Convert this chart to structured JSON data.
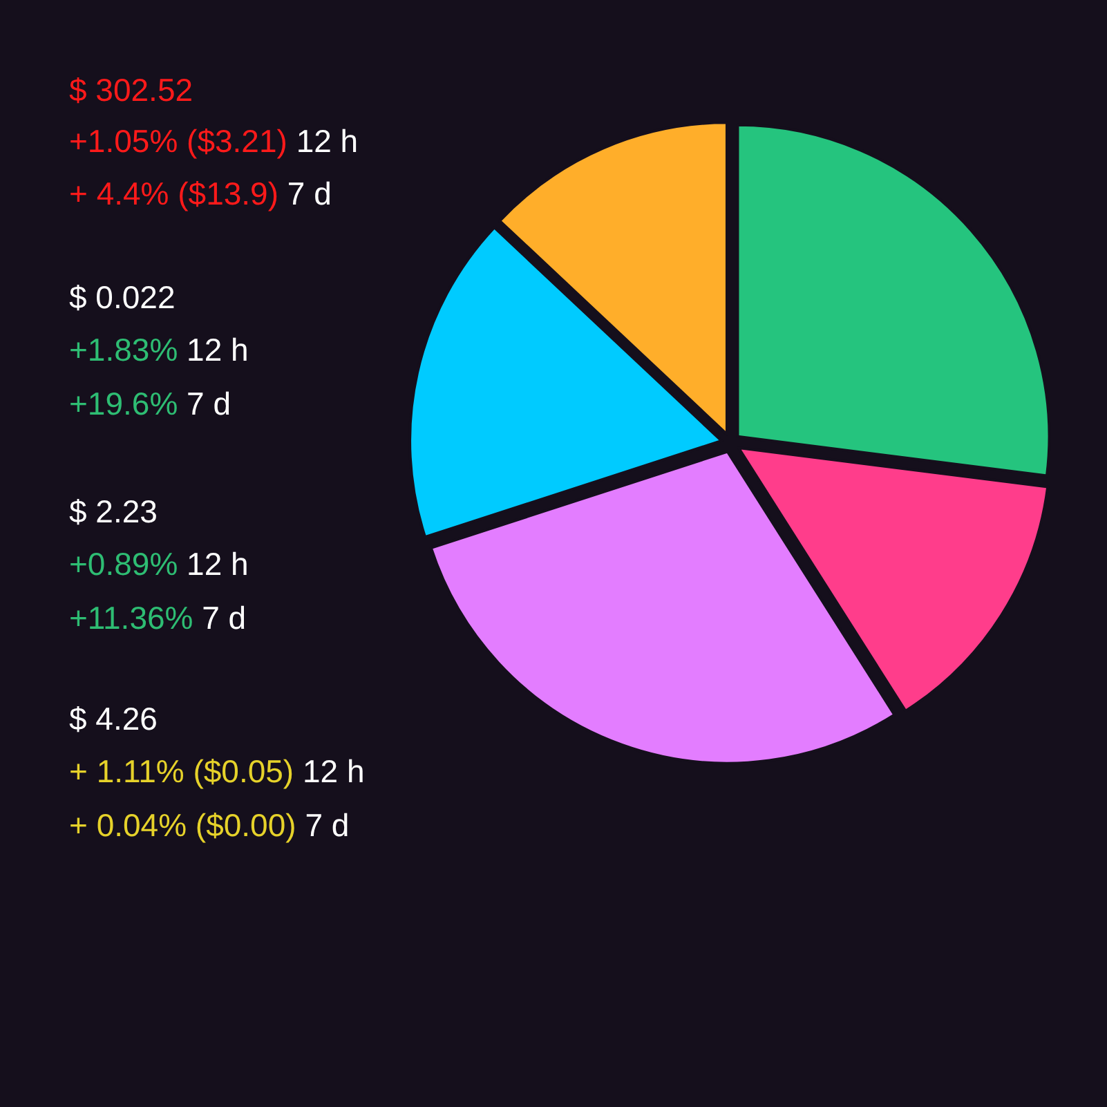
{
  "chart_data": {
    "type": "pie",
    "categories": [
      null,
      null,
      null,
      null,
      null
    ],
    "values": [
      27,
      14,
      29,
      17,
      13
    ],
    "colors": [
      "#25c47e",
      "#ff3d8b",
      "#e37dff",
      "#00cbff",
      "#ffae2a"
    ],
    "annotations": [
      "$ 302.52",
      "+1.05% ($3.21) 12 h",
      "+ 4.4% ($13.9) 7 d",
      "$ 0.022",
      "+1.83% 12 h",
      "+19.6% 7 d",
      "$ 2.23",
      "+0.89% 12 h",
      "+11.36% 7 d",
      "$ 4.26",
      "+ 1.11% ($0.05) 12 h",
      "+ 0.04% ($0.00) 7 d"
    ]
  }
}
